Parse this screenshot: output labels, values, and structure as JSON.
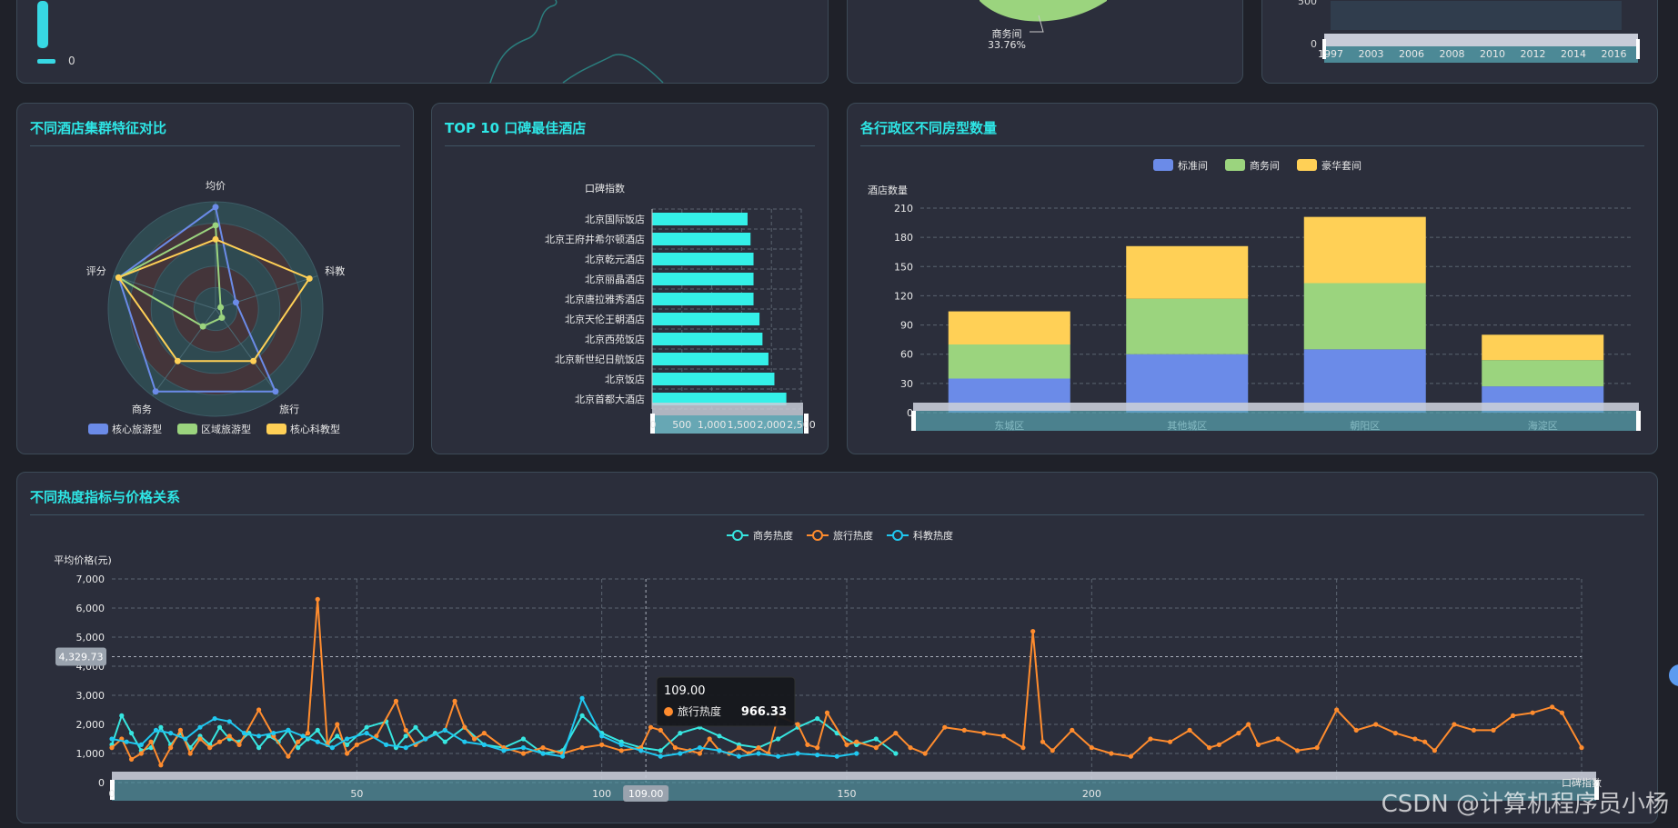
{
  "top_strip": {
    "left_legend_zero": "0",
    "pie_label_name": "商务间",
    "pie_label_pct": "33.76%",
    "line_top_tick": "500",
    "line_zero_tick": "0",
    "line_years": [
      "1997",
      "2003",
      "2006",
      "2008",
      "2010",
      "2012",
      "2014",
      "2016"
    ]
  },
  "radar": {
    "title": "不同酒店集群特征对比",
    "indicators": [
      "均价",
      "科教",
      "旅行",
      "商务",
      "评分"
    ],
    "series": [
      {
        "name": "核心旅游型",
        "color": "#6b8be8",
        "values": [
          0.95,
          0.2,
          0.95,
          0.95,
          0.95
        ]
      },
      {
        "name": "区域旅游型",
        "color": "#9bd47e",
        "values": [
          0.78,
          0.05,
          0.1,
          0.2,
          0.95
        ]
      },
      {
        "name": "核心科教型",
        "color": "#ffd056",
        "values": [
          0.65,
          0.92,
          0.6,
          0.6,
          0.95
        ]
      }
    ]
  },
  "top10": {
    "title": "TOP 10 口碑最佳酒店",
    "axis_name": "口碑指数",
    "hotels": [
      "北京国际饭店",
      "北京王府井希尔顿酒店",
      "北京乾元酒店",
      "北京丽晶酒店",
      "北京唐拉雅秀酒店",
      "北京天伦王朝酒店",
      "北京西苑饭店",
      "北京新世纪日航饭店",
      "北京饭店",
      "北京首都大酒店"
    ],
    "values": [
      1600,
      1650,
      1700,
      1700,
      1700,
      1800,
      1850,
      1950,
      2050,
      2250
    ],
    "xticks": [
      "0",
      "500",
      "1,000",
      "1,500",
      "2,000",
      "2,500"
    ]
  },
  "district": {
    "title": "各行政区不同房型数量",
    "y_axis_name": "酒店数量",
    "legend": [
      "标准间",
      "商务间",
      "豪华套间"
    ],
    "colors": [
      "#6b8be8",
      "#9bd47e",
      "#ffd056"
    ],
    "categories": [
      "东城区",
      "其他城区",
      "朝阳区",
      "海淀区"
    ],
    "yticks": [
      "0",
      "30",
      "60",
      "90",
      "120",
      "150",
      "180",
      "210"
    ]
  },
  "heat": {
    "title": "不同热度指标与价格关系",
    "y_axis_name": "平均价格(元)",
    "x_axis_name": "口碑指数",
    "legend": [
      "商务热度",
      "旅行热度",
      "科教热度"
    ],
    "colors": [
      "#37e6e0",
      "#ff8c2e",
      "#20c8f0"
    ],
    "yticks": [
      "0",
      "1,000",
      "2,000",
      "3,000",
      "4,000",
      "5,000",
      "6,000",
      "7,000"
    ],
    "xticks": [
      "0",
      "50",
      "100",
      "150",
      "200"
    ],
    "crosshair_y_label": "4,329.73",
    "crosshair_x_label": "109.00",
    "tooltip": {
      "title": "109.00",
      "series": "旅行热度",
      "value": "966.33"
    }
  },
  "chart_data": [
    {
      "type": "radar",
      "title": "不同酒店集群特征对比",
      "indicators": [
        "均价",
        "科教",
        "旅行",
        "商务",
        "评分"
      ],
      "series": [
        {
          "name": "核心旅游型",
          "values": [
            0.95,
            0.2,
            0.95,
            0.95,
            0.95
          ]
        },
        {
          "name": "区域旅游型",
          "values": [
            0.78,
            0.05,
            0.1,
            0.2,
            0.95
          ]
        },
        {
          "name": "核心科教型",
          "values": [
            0.65,
            0.92,
            0.6,
            0.6,
            0.95
          ]
        }
      ]
    },
    {
      "type": "bar",
      "title": "TOP 10 口碑最佳酒店",
      "xlabel": "口碑指数",
      "categories": [
        "北京国际饭店",
        "北京王府井希尔顿酒店",
        "北京乾元酒店",
        "北京丽晶酒店",
        "北京唐拉雅秀酒店",
        "北京天伦王朝酒店",
        "北京西苑饭店",
        "北京新世纪日航饭店",
        "北京饭店",
        "北京首都大酒店"
      ],
      "values": [
        1600,
        1650,
        1700,
        1700,
        1700,
        1800,
        1850,
        1950,
        2050,
        2250
      ],
      "xlim": [
        0,
        2500
      ]
    },
    {
      "type": "bar",
      "title": "各行政区不同房型数量",
      "ylabel": "酒店数量",
      "categories": [
        "东城区",
        "其他城区",
        "朝阳区",
        "海淀区"
      ],
      "series": [
        {
          "name": "标准间",
          "values": [
            35,
            60,
            65,
            27
          ]
        },
        {
          "name": "商务间",
          "values": [
            35,
            57,
            68,
            27
          ]
        },
        {
          "name": "豪华套间",
          "values": [
            34,
            54,
            68,
            26
          ]
        }
      ],
      "ylim": [
        0,
        210
      ]
    },
    {
      "type": "line",
      "title": "不同热度指标与价格关系",
      "xlabel": "口碑指数",
      "ylabel": "平均价格(元)",
      "xlim": [
        0,
        300
      ],
      "ylim": [
        0,
        7000
      ],
      "series": [
        {
          "name": "旅行热度",
          "points": [
            [
              0,
              1200
            ],
            [
              2,
              1500
            ],
            [
              4,
              800
            ],
            [
              6,
              1000
            ],
            [
              8,
              1400
            ],
            [
              10,
              600
            ],
            [
              12,
              1200
            ],
            [
              14,
              1800
            ],
            [
              16,
              1000
            ],
            [
              18,
              1500
            ],
            [
              20,
              1200
            ],
            [
              22,
              1400
            ],
            [
              24,
              1600
            ],
            [
              26,
              1300
            ],
            [
              30,
              2500
            ],
            [
              33,
              1600
            ],
            [
              36,
              900
            ],
            [
              38,
              1400
            ],
            [
              40,
              1700
            ],
            [
              42,
              6300
            ],
            [
              44,
              1300
            ],
            [
              46,
              2000
            ],
            [
              48,
              1000
            ],
            [
              50,
              1300
            ],
            [
              54,
              1600
            ],
            [
              58,
              2800
            ],
            [
              60,
              1800
            ],
            [
              62,
              1300
            ],
            [
              64,
              1500
            ],
            [
              68,
              1800
            ],
            [
              70,
              2800
            ],
            [
              72,
              1900
            ],
            [
              74,
              1500
            ],
            [
              76,
              1700
            ],
            [
              80,
              1200
            ],
            [
              84,
              1000
            ],
            [
              88,
              1200
            ],
            [
              92,
              1000
            ],
            [
              96,
              1200
            ],
            [
              100,
              1300
            ],
            [
              104,
              1100
            ],
            [
              108,
              1200
            ],
            [
              110,
              1900
            ],
            [
              112,
              1800
            ],
            [
              115,
              1200
            ],
            [
              118,
              1100
            ],
            [
              120,
              1000
            ],
            [
              122,
              1500
            ],
            [
              124,
              1100
            ],
            [
              126,
              1000
            ],
            [
              128,
              1200
            ],
            [
              130,
              1000
            ],
            [
              132,
              1200
            ],
            [
              134,
              1000
            ],
            [
              136,
              2300
            ],
            [
              140,
              2000
            ],
            [
              142,
              1300
            ],
            [
              144,
              1200
            ],
            [
              146,
              2400
            ],
            [
              150,
              1300
            ],
            [
              152,
              1400
            ],
            [
              156,
              1200
            ],
            [
              160,
              1700
            ],
            [
              163,
              1200
            ],
            [
              166,
              1000
            ],
            [
              170,
              1900
            ],
            [
              174,
              1800
            ],
            [
              178,
              1700
            ],
            [
              182,
              1600
            ],
            [
              186,
              1200
            ],
            [
              188,
              5200
            ],
            [
              190,
              1400
            ],
            [
              192,
              1100
            ],
            [
              196,
              1800
            ],
            [
              200,
              1200
            ],
            [
              204,
              1000
            ],
            [
              208,
              900
            ],
            [
              212,
              1500
            ],
            [
              216,
              1400
            ],
            [
              220,
              1800
            ],
            [
              224,
              1200
            ],
            [
              226,
              1300
            ],
            [
              230,
              1700
            ],
            [
              232,
              2000
            ],
            [
              234,
              1300
            ],
            [
              238,
              1500
            ],
            [
              242,
              1100
            ],
            [
              246,
              1200
            ],
            [
              250,
              2500
            ],
            [
              254,
              1800
            ],
            [
              258,
              2000
            ],
            [
              262,
              1700
            ],
            [
              266,
              1500
            ],
            [
              268,
              1400
            ],
            [
              270,
              1100
            ],
            [
              274,
              2000
            ],
            [
              278,
              1800
            ],
            [
              282,
              1800
            ],
            [
              286,
              2300
            ],
            [
              290,
              2400
            ],
            [
              294,
              2600
            ],
            [
              296,
              2400
            ],
            [
              300,
              1200
            ]
          ]
        },
        {
          "name": "商务热度",
          "points": [
            [
              0,
              1300
            ],
            [
              2,
              2300
            ],
            [
              4,
              1700
            ],
            [
              6,
              1100
            ],
            [
              8,
              1200
            ],
            [
              10,
              1900
            ],
            [
              12,
              1300
            ],
            [
              14,
              1700
            ],
            [
              16,
              1200
            ],
            [
              18,
              1600
            ],
            [
              20,
              1300
            ],
            [
              22,
              1900
            ],
            [
              24,
              1500
            ],
            [
              26,
              1400
            ],
            [
              28,
              1700
            ],
            [
              30,
              1200
            ],
            [
              32,
              1600
            ],
            [
              34,
              1400
            ],
            [
              36,
              1800
            ],
            [
              38,
              1200
            ],
            [
              40,
              1500
            ],
            [
              42,
              1800
            ],
            [
              44,
              1300
            ],
            [
              46,
              1600
            ],
            [
              48,
              1300
            ],
            [
              52,
              1900
            ],
            [
              56,
              2100
            ],
            [
              58,
              1200
            ],
            [
              60,
              1600
            ],
            [
              62,
              1900
            ],
            [
              64,
              1500
            ],
            [
              66,
              1700
            ],
            [
              68,
              1400
            ],
            [
              72,
              1900
            ],
            [
              76,
              1300
            ],
            [
              80,
              1200
            ],
            [
              84,
              1500
            ],
            [
              88,
              1000
            ],
            [
              92,
              1100
            ],
            [
              96,
              2300
            ],
            [
              100,
              1700
            ],
            [
              104,
              1400
            ],
            [
              108,
              1200
            ],
            [
              112,
              1100
            ],
            [
              116,
              1700
            ],
            [
              120,
              1900
            ],
            [
              124,
              1600
            ],
            [
              128,
              1300
            ],
            [
              132,
              1200
            ],
            [
              136,
              1500
            ],
            [
              140,
              1900
            ],
            [
              144,
              2200
            ],
            [
              148,
              1700
            ],
            [
              152,
              1300
            ],
            [
              156,
              1500
            ],
            [
              160,
              1000
            ]
          ]
        },
        {
          "name": "科教热度",
          "points": [
            [
              0,
              1500
            ],
            [
              3,
              1400
            ],
            [
              6,
              1300
            ],
            [
              9,
              1800
            ],
            [
              12,
              1700
            ],
            [
              15,
              1500
            ],
            [
              18,
              1900
            ],
            [
              21,
              2200
            ],
            [
              24,
              2100
            ],
            [
              27,
              1700
            ],
            [
              30,
              1600
            ],
            [
              33,
              1700
            ],
            [
              36,
              1800
            ],
            [
              39,
              1600
            ],
            [
              42,
              1400
            ],
            [
              45,
              1200
            ],
            [
              48,
              1500
            ],
            [
              52,
              1700
            ],
            [
              56,
              1300
            ],
            [
              60,
              1200
            ],
            [
              64,
              1500
            ],
            [
              68,
              1800
            ],
            [
              72,
              1400
            ],
            [
              76,
              1300
            ],
            [
              80,
              1100
            ],
            [
              84,
              1200
            ],
            [
              88,
              1000
            ],
            [
              92,
              900
            ],
            [
              96,
              2900
            ],
            [
              100,
              1600
            ],
            [
              104,
              1300
            ],
            [
              108,
              1100
            ],
            [
              112,
              900
            ],
            [
              116,
              1000
            ],
            [
              120,
              1200
            ],
            [
              124,
              1100
            ],
            [
              128,
              900
            ],
            [
              132,
              1000
            ],
            [
              136,
              900
            ],
            [
              140,
              1000
            ],
            [
              144,
              950
            ],
            [
              148,
              900
            ],
            [
              152,
              1000
            ]
          ]
        }
      ]
    }
  ]
}
